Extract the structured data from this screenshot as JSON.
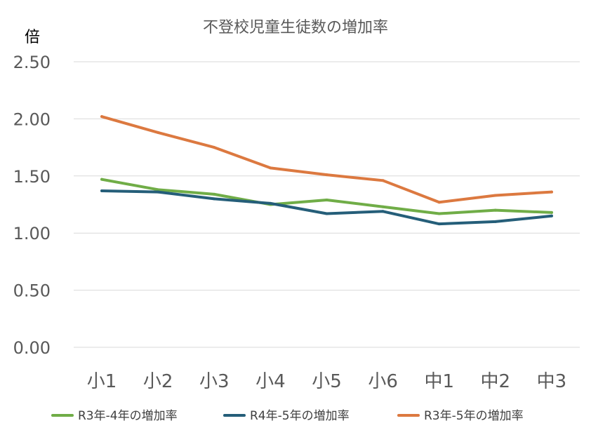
{
  "chart_data": {
    "type": "line",
    "title": "不登校児童生徒数の増加率",
    "ylabel": "倍",
    "xlabel": "",
    "categories": [
      "小1",
      "小2",
      "小3",
      "小4",
      "小5",
      "小6",
      "中1",
      "中2",
      "中3"
    ],
    "ylim": [
      0,
      2.5
    ],
    "yticks": [
      "0.00",
      "0.50",
      "1.00",
      "1.50",
      "2.00",
      "2.50"
    ],
    "grid": true,
    "legend_position": "bottom",
    "series": [
      {
        "name": "R3年-4年の増加率",
        "color": "#70ad47",
        "values": [
          1.47,
          1.38,
          1.34,
          1.25,
          1.29,
          1.23,
          1.17,
          1.2,
          1.18
        ]
      },
      {
        "name": "R4年-5年の増加率",
        "color": "#255e79",
        "values": [
          1.37,
          1.36,
          1.3,
          1.26,
          1.17,
          1.19,
          1.08,
          1.1,
          1.15
        ]
      },
      {
        "name": "R3年-5年の増加率",
        "color": "#dc7940",
        "values": [
          2.02,
          1.88,
          1.75,
          1.57,
          1.51,
          1.46,
          1.27,
          1.33,
          1.36
        ]
      }
    ]
  }
}
